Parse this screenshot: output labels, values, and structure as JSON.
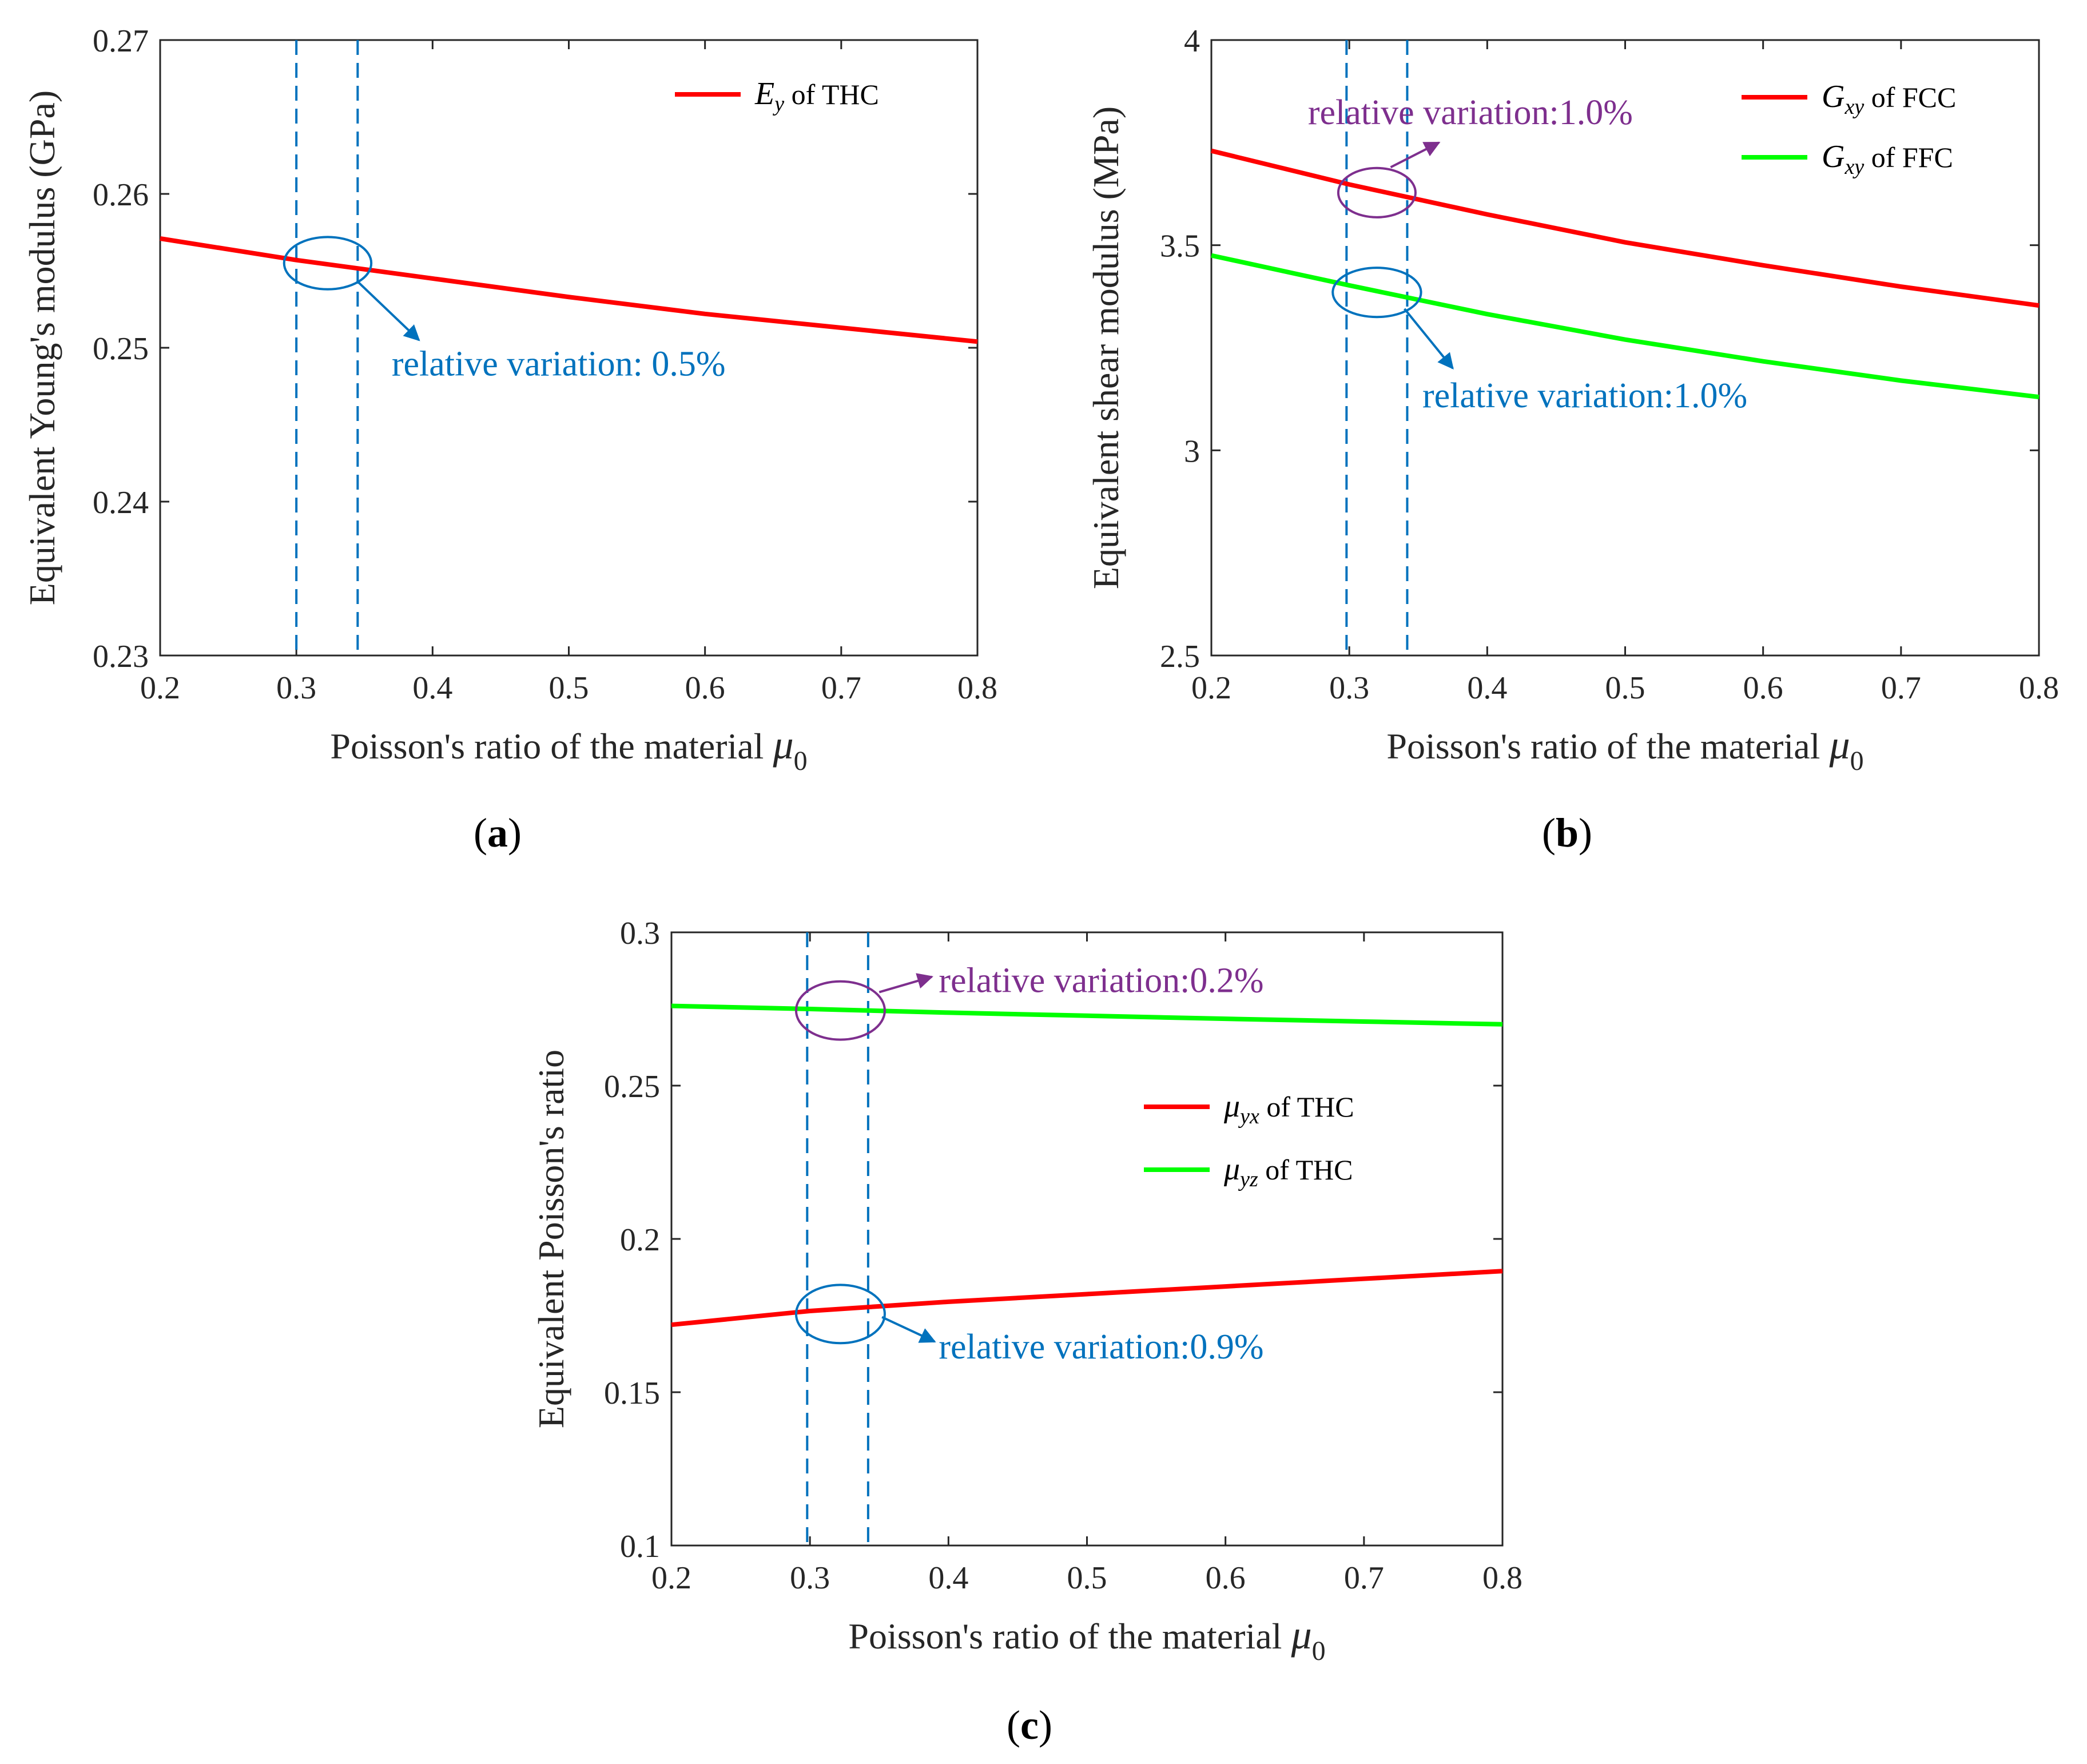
{
  "colors": {
    "red": "#ff0000",
    "green": "#00ff00",
    "blue": "#0072bd",
    "purple": "#7e2f8e",
    "axis": "#262626"
  },
  "chart_data": [
    {
      "panel_label": "(a)",
      "type": "line",
      "xlabel": "Poisson's ratio of the material",
      "xlabel_symbol": "μ",
      "xlabel_sub": "0",
      "ylabel": "Equivalent Young's modulus (GPa)",
      "xlim": [
        0.2,
        0.8
      ],
      "ylim": [
        0.23,
        0.27
      ],
      "xticks": [
        0.2,
        0.3,
        0.4,
        0.5,
        0.6,
        0.7,
        0.8
      ],
      "xtick_labels": [
        "0.2",
        "0.3",
        "0.4",
        "0.5",
        "0.6",
        "0.7",
        "0.8"
      ],
      "yticks": [
        0.23,
        0.24,
        0.25,
        0.26,
        0.27
      ],
      "ytick_labels": [
        "0.23",
        "0.24",
        "0.25",
        "0.26",
        "0.27"
      ],
      "legend_position": "top-right",
      "dashed_x": [
        0.3,
        0.345
      ],
      "series": [
        {
          "name": "E_y of THC",
          "legend_sym": "E",
          "legend_sub": "y",
          "legend_text": "of THC",
          "color": "#ff0000",
          "x": [
            0.2,
            0.3,
            0.4,
            0.5,
            0.6,
            0.7,
            0.8
          ],
          "y": [
            0.2571,
            0.2557,
            0.2545,
            0.2533,
            0.2522,
            0.2513,
            0.2504
          ]
        }
      ],
      "annotations": [
        {
          "text": "relative variation: 0.5%",
          "color": "#0072bd",
          "center": [
            0.323,
            0.2555
          ],
          "rx": 0.032,
          "ry": 0.0017,
          "arrow_from": [
            0.345,
            0.2543
          ],
          "arrow_to": [
            0.39,
            0.2505
          ],
          "text_at": [
            0.37,
            0.2482
          ]
        }
      ]
    },
    {
      "panel_label": "(b)",
      "type": "line",
      "xlabel": "Poisson's ratio of the material",
      "xlabel_symbol": "μ",
      "xlabel_sub": "0",
      "ylabel": "Equivalent shear modulus (MPa)",
      "xlim": [
        0.2,
        0.8
      ],
      "ylim": [
        2.5,
        4.0
      ],
      "xticks": [
        0.2,
        0.3,
        0.4,
        0.5,
        0.6,
        0.7,
        0.8
      ],
      "xtick_labels": [
        "0.2",
        "0.3",
        "0.4",
        "0.5",
        "0.6",
        "0.7",
        "0.8"
      ],
      "yticks": [
        2.5,
        3.0,
        3.5,
        4.0
      ],
      "ytick_labels": [
        "2.5",
        "3",
        "3.5",
        "4"
      ],
      "legend_position": "top-right",
      "dashed_x": [
        0.298,
        0.342
      ],
      "series": [
        {
          "name": "G_xy of FCC",
          "legend_sym": "G",
          "legend_sub": "xy",
          "legend_text": "of FCC",
          "color": "#ff0000",
          "x": [
            0.2,
            0.3,
            0.4,
            0.5,
            0.6,
            0.7,
            0.8
          ],
          "y": [
            3.73,
            3.648,
            3.575,
            3.507,
            3.451,
            3.399,
            3.353
          ]
        },
        {
          "name": "G_xy of FFC",
          "legend_sym": "G",
          "legend_sub": "xy",
          "legend_text": "of FFC",
          "color": "#00ff00",
          "x": [
            0.2,
            0.3,
            0.4,
            0.5,
            0.6,
            0.7,
            0.8
          ],
          "y": [
            3.475,
            3.402,
            3.332,
            3.27,
            3.217,
            3.17,
            3.13
          ]
        }
      ],
      "annotations": [
        {
          "text": "relative variation:1.0%",
          "color": "#7e2f8e",
          "center": [
            0.32,
            3.628
          ],
          "rx": 0.028,
          "ry": 0.06,
          "arrow_from": [
            0.33,
            3.69
          ],
          "arrow_to": [
            0.365,
            3.75
          ],
          "text_at": [
            0.27,
            3.795
          ]
        },
        {
          "text": "relative variation:1.0%",
          "color": "#0072bd",
          "center": [
            0.32,
            3.385
          ],
          "rx": 0.032,
          "ry": 0.06,
          "arrow_from": [
            0.34,
            3.345
          ],
          "arrow_to": [
            0.375,
            3.2
          ],
          "text_at": [
            0.353,
            3.105
          ]
        }
      ]
    },
    {
      "panel_label": "(c)",
      "type": "line",
      "xlabel": "Poisson's ratio of the material",
      "xlabel_symbol": "μ",
      "xlabel_sub": "0",
      "ylabel": "Equivalent Poisson's ratio",
      "xlim": [
        0.2,
        0.8
      ],
      "ylim": [
        0.1,
        0.3
      ],
      "xticks": [
        0.2,
        0.3,
        0.4,
        0.5,
        0.6,
        0.7,
        0.8
      ],
      "xtick_labels": [
        "0.2",
        "0.3",
        "0.4",
        "0.5",
        "0.6",
        "0.7",
        "0.8"
      ],
      "yticks": [
        0.1,
        0.15,
        0.2,
        0.25,
        0.3
      ],
      "ytick_labels": [
        "0.1",
        "0.15",
        "0.2",
        "0.25",
        "0.3"
      ],
      "legend_position": "center-right",
      "dashed_x": [
        0.298,
        0.342
      ],
      "series": [
        {
          "name": "μ_yx of THC",
          "legend_sym": "μ",
          "legend_sub": "yx",
          "legend_text": "of THC",
          "color": "#ff0000",
          "x": [
            0.2,
            0.3,
            0.4,
            0.5,
            0.6,
            0.7,
            0.8
          ],
          "y": [
            0.172,
            0.1765,
            0.1795,
            0.182,
            0.1845,
            0.187,
            0.1895
          ]
        },
        {
          "name": "μ_yz of THC",
          "legend_sym": "μ",
          "legend_sub": "yz",
          "legend_text": "of THC",
          "color": "#00ff00",
          "x": [
            0.2,
            0.3,
            0.4,
            0.5,
            0.6,
            0.7,
            0.8
          ],
          "y": [
            0.276,
            0.275,
            0.2738,
            0.2728,
            0.2718,
            0.2709,
            0.27
          ]
        }
      ],
      "annotations": [
        {
          "text": "relative variation:0.2%",
          "color": "#7e2f8e",
          "center": [
            0.322,
            0.2745
          ],
          "rx": 0.032,
          "ry": 0.0095,
          "arrow_from": [
            0.35,
            0.2805
          ],
          "arrow_to": [
            0.388,
            0.2855
          ],
          "text_at": [
            0.393,
            0.2805
          ]
        },
        {
          "text": "relative variation:0.9%",
          "color": "#0072bd",
          "center": [
            0.322,
            0.1755
          ],
          "rx": 0.032,
          "ry": 0.0095,
          "arrow_from": [
            0.352,
            0.1745
          ],
          "arrow_to": [
            0.39,
            0.1665
          ],
          "text_at": [
            0.393,
            0.161
          ]
        }
      ]
    }
  ]
}
